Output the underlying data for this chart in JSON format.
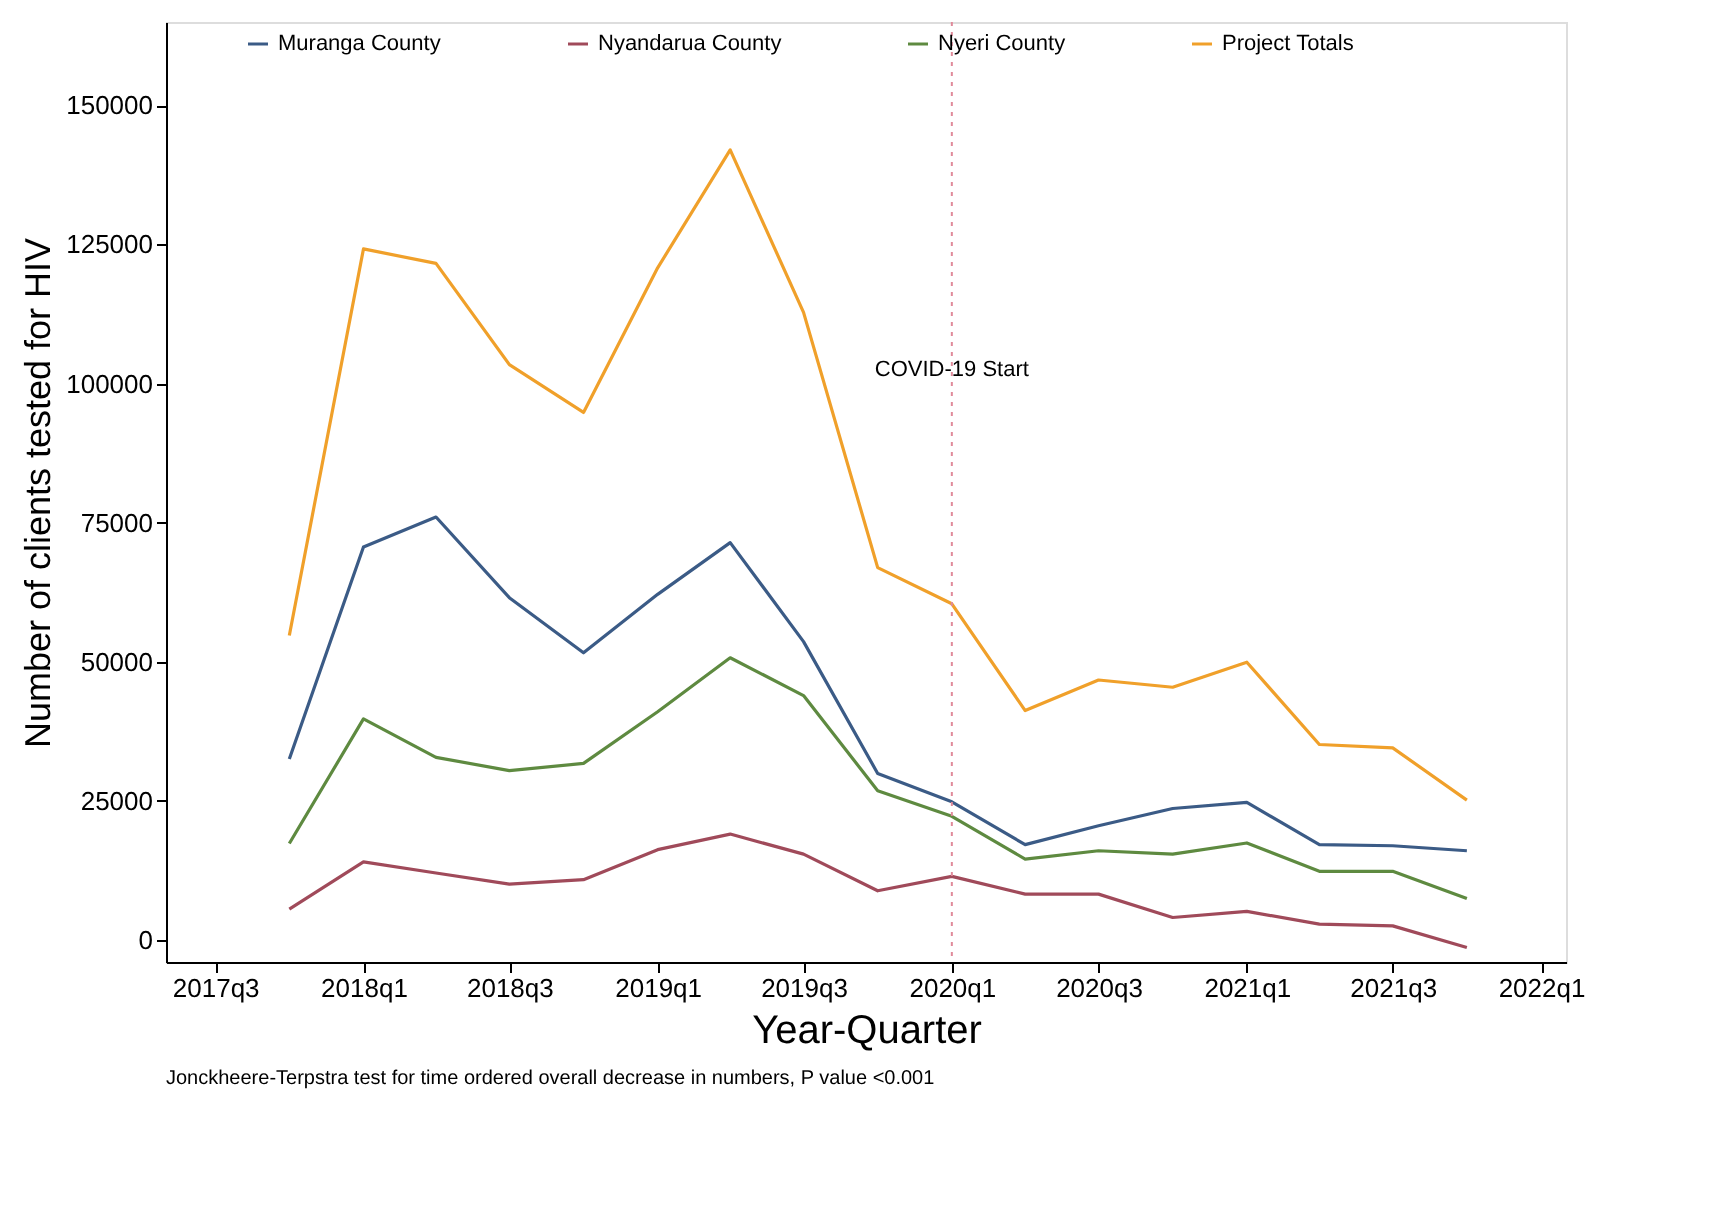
{
  "chart_data": {
    "type": "line",
    "xlabel": "Year-Quarter",
    "ylabel": "Number of clients tested for HIV",
    "x": [
      "2017-10",
      "2018-01",
      "2018-04",
      "2018-07",
      "2018-10",
      "2019-01",
      "2019-04",
      "2019-07",
      "2019-10",
      "2020-01",
      "2020-04",
      "2020-07",
      "2020-10",
      "2021-01",
      "2021-04",
      "2021-07",
      "2021-10"
    ],
    "series": [
      {
        "name": "Muranga County",
        "color": "#3b5b86",
        "values": [
          32500,
          70600,
          76000,
          61500,
          51600,
          62100,
          71400,
          53600,
          29900,
          24800,
          17100,
          20500,
          23600,
          24700,
          17100,
          16900,
          16000
        ]
      },
      {
        "name": "Nyandarua County",
        "color": "#a04a5a",
        "values": [
          5500,
          14000,
          12000,
          10000,
          10800,
          16200,
          19000,
          15400,
          8800,
          11400,
          8200,
          8200,
          4000,
          5100,
          2800,
          2500,
          -1400
        ]
      },
      {
        "name": "Nyeri County",
        "color": "#5e8a40",
        "values": [
          17300,
          39700,
          32800,
          30400,
          31700,
          41000,
          50700,
          43900,
          26800,
          22200,
          14500,
          16000,
          15400,
          17400,
          12300,
          12300,
          7400
        ]
      },
      {
        "name": "Project Totals",
        "color": "#f0a02a",
        "values": [
          54700,
          124200,
          121600,
          103400,
          94800,
          120800,
          142000,
          112800,
          66900,
          60400,
          41200,
          46700,
          45400,
          49900,
          35100,
          34500,
          25100
        ]
      }
    ],
    "xlim": [
      "2017-05",
      "2022-02"
    ],
    "xticks": [
      {
        "value": "2017-07",
        "label": "2017q3"
      },
      {
        "value": "2018-01",
        "label": "2018q1"
      },
      {
        "value": "2018-07",
        "label": "2018q3"
      },
      {
        "value": "2019-01",
        "label": "2019q1"
      },
      {
        "value": "2019-07",
        "label": "2019q3"
      },
      {
        "value": "2020-01",
        "label": "2020q1"
      },
      {
        "value": "2020-07",
        "label": "2020q3"
      },
      {
        "value": "2021-01",
        "label": "2021q1"
      },
      {
        "value": "2021-07",
        "label": "2021q3"
      },
      {
        "value": "2022-01",
        "label": "2022q1"
      }
    ],
    "ylim": [
      -4000,
      165000
    ],
    "yticks": [
      0,
      25000,
      50000,
      75000,
      100000,
      125000,
      150000
    ],
    "ref_lines": [
      {
        "axis": "x",
        "value": "2020-01",
        "label": "COVID-19 Start",
        "color": "#e08a9a",
        "line_style": "dotted"
      }
    ],
    "annotations": [
      "Jonckheere-Terpstra test for time ordered overall decrease in numbers, P value <0.001"
    ],
    "legend": "top",
    "grid": false,
    "marker": "none",
    "line_style": "solid"
  }
}
